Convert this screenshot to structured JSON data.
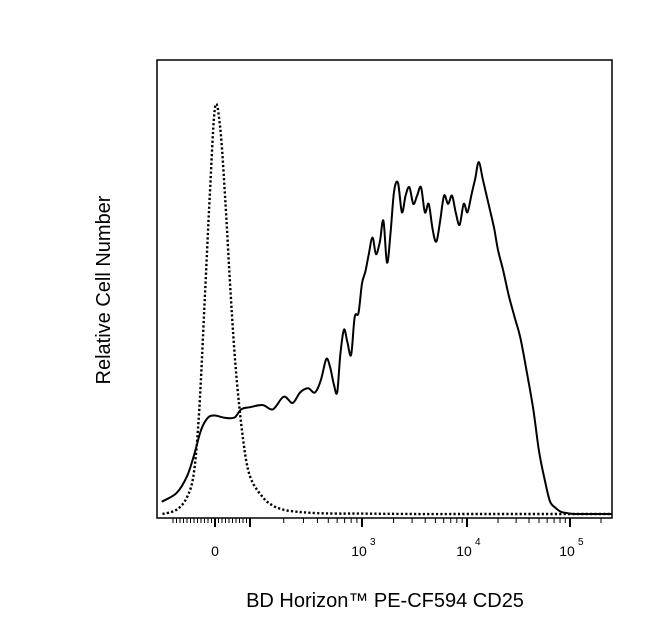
{
  "chart_data": {
    "type": "line",
    "title": "",
    "xlabel": "BD Horizon™ PE-CF594 CD25",
    "ylabel": "Relative Cell Number",
    "x_scale": "biexponential (linear near 0, log above 10^2)",
    "x_ticks": [
      {
        "value": 0,
        "base": "0",
        "exp": ""
      },
      {
        "value": 1000,
        "base": "10",
        "exp": "3"
      },
      {
        "value": 10000,
        "base": "10",
        "exp": "4"
      },
      {
        "value": 100000,
        "base": "10",
        "exp": "5"
      }
    ],
    "xlim": [
      -150,
      250000
    ],
    "ylim": [
      0,
      1.0
    ],
    "grid": false,
    "legend": "none",
    "series": [
      {
        "style": "dotted",
        "color": "#000000",
        "x": [
          -150,
          -110,
          -80,
          -60,
          -45,
          -30,
          -15,
          0,
          15,
          30,
          45,
          60,
          80,
          100,
          130,
          160,
          200,
          250,
          300,
          400,
          600,
          1000,
          3000,
          10000,
          100000,
          250000
        ],
        "y": [
          0.0,
          0.01,
          0.04,
          0.1,
          0.25,
          0.5,
          0.76,
          0.97,
          0.92,
          0.74,
          0.52,
          0.34,
          0.18,
          0.09,
          0.04,
          0.02,
          0.01,
          0.006,
          0.004,
          0.002,
          0.001,
          0.001,
          0.0,
          0.0,
          0.0,
          0.0
        ]
      },
      {
        "style": "solid",
        "color": "#000000",
        "x": [
          -150,
          -110,
          -80,
          -60,
          -40,
          -20,
          0,
          25,
          55,
          75,
          100,
          130,
          160,
          200,
          240,
          280,
          330,
          380,
          430,
          480,
          520,
          560,
          600,
          640,
          690,
          740,
          800,
          860,
          930,
          1000,
          1080,
          1160,
          1260,
          1360,
          1480,
          1600,
          1730,
          1870,
          2020,
          2200,
          2400,
          2600,
          2830,
          3080,
          3350,
          3650,
          3970,
          4320,
          4700,
          5100,
          5550,
          6050,
          6600,
          7200,
          7800,
          8500,
          9300,
          10100,
          11000,
          12000,
          13000,
          14200,
          15500,
          16900,
          18400,
          20000,
          22500,
          25500,
          29000,
          33000,
          38000,
          44000,
          50000,
          57000,
          64000,
          72000,
          82000,
          95000,
          110000,
          130000,
          155000,
          185000,
          220000,
          250000
        ],
        "y": [
          0.03,
          0.05,
          0.09,
          0.14,
          0.2,
          0.23,
          0.235,
          0.23,
          0.23,
          0.25,
          0.255,
          0.26,
          0.25,
          0.28,
          0.265,
          0.29,
          0.3,
          0.29,
          0.32,
          0.37,
          0.35,
          0.31,
          0.29,
          0.38,
          0.44,
          0.41,
          0.38,
          0.47,
          0.48,
          0.55,
          0.58,
          0.62,
          0.66,
          0.62,
          0.65,
          0.7,
          0.6,
          0.67,
          0.77,
          0.79,
          0.72,
          0.76,
          0.78,
          0.74,
          0.76,
          0.78,
          0.72,
          0.74,
          0.68,
          0.65,
          0.7,
          0.76,
          0.74,
          0.76,
          0.72,
          0.69,
          0.74,
          0.72,
          0.76,
          0.8,
          0.84,
          0.8,
          0.76,
          0.72,
          0.68,
          0.63,
          0.58,
          0.52,
          0.47,
          0.42,
          0.34,
          0.25,
          0.15,
          0.08,
          0.03,
          0.015,
          0.005,
          0.002,
          0.0,
          0.0,
          0.0,
          0.0,
          0.0,
          0.0
        ]
      }
    ]
  }
}
